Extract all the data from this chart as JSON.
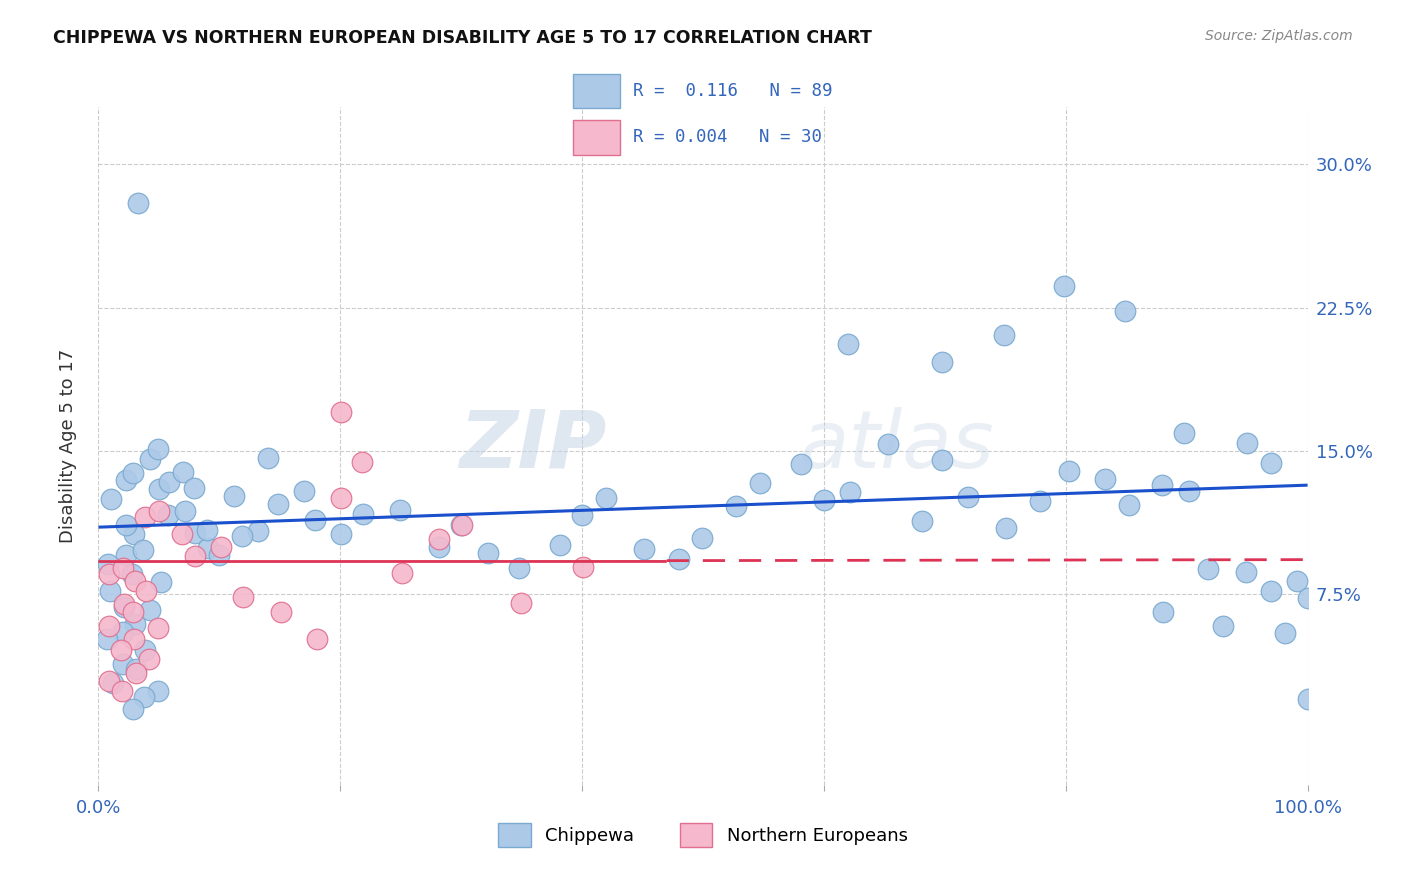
{
  "title": "CHIPPEWA VS NORTHERN EUROPEAN DISABILITY AGE 5 TO 17 CORRELATION CHART",
  "source": "Source: ZipAtlas.com",
  "ylabel": "Disability Age 5 to 17",
  "xlim": [
    0,
    100
  ],
  "ylim": [
    -2.5,
    33
  ],
  "yticks": [
    7.5,
    15.0,
    22.5,
    30.0
  ],
  "ytick_labels": [
    "7.5%",
    "15.0%",
    "22.5%",
    "30.0%"
  ],
  "xticks": [
    0,
    20,
    40,
    60,
    80,
    100
  ],
  "xtick_labels": [
    "0.0%",
    "",
    "",
    "",
    "",
    "100.0%"
  ],
  "chippewa_color": "#adc9e8",
  "chippewa_edge": "#7aaad0",
  "northern_color": "#f5b8cc",
  "northern_edge": "#e07090",
  "trend_blue": "#1a50cc",
  "trend_pink": "#dd3355",
  "watermark_zip": "ZIP",
  "watermark_atlas": "atlas",
  "background": "#ffffff",
  "chip_trend_x0": 0,
  "chip_trend_y0": 11.0,
  "chip_trend_x1": 100,
  "chip_trend_y1": 13.2,
  "north_trend_x0": 0,
  "north_trend_y0": 9.2,
  "north_trend_x1": 100,
  "north_trend_y1": 9.3,
  "chippewa_x": [
    3,
    5,
    1,
    2,
    4,
    3,
    2,
    1,
    4,
    2,
    3,
    1,
    5,
    4,
    3,
    2,
    1,
    3,
    2,
    4,
    1,
    2,
    3,
    5,
    4,
    6,
    8,
    7,
    9,
    10,
    6,
    7,
    8,
    9,
    5,
    11,
    13,
    12,
    14,
    15,
    17,
    18,
    20,
    22,
    25,
    28,
    30,
    32,
    35,
    38,
    40,
    42,
    45,
    48,
    50,
    53,
    55,
    58,
    60,
    62,
    65,
    68,
    70,
    72,
    75,
    78,
    80,
    83,
    85,
    88,
    90,
    92,
    95,
    97,
    100,
    62,
    70,
    75,
    80,
    85,
    90,
    95,
    97,
    99,
    100,
    88,
    93,
    98,
    3
  ],
  "chippewa_y": [
    8.5,
    8.0,
    7.5,
    7.0,
    6.5,
    6.0,
    5.5,
    5.0,
    4.5,
    4.0,
    3.5,
    3.0,
    2.5,
    2.0,
    1.5,
    9.5,
    9.0,
    10.5,
    11.0,
    10.0,
    12.5,
    13.5,
    14.0,
    13.0,
    14.5,
    11.5,
    10.5,
    12.0,
    10.0,
    9.5,
    13.5,
    14.0,
    13.0,
    11.0,
    15.0,
    12.5,
    11.0,
    10.5,
    14.5,
    12.0,
    13.0,
    11.5,
    10.5,
    11.5,
    12.0,
    10.0,
    11.0,
    9.5,
    9.0,
    10.0,
    11.5,
    12.5,
    10.0,
    9.5,
    10.5,
    12.0,
    13.5,
    14.5,
    12.5,
    13.0,
    15.5,
    11.5,
    14.5,
    12.5,
    11.0,
    12.5,
    14.0,
    13.5,
    12.0,
    13.0,
    13.0,
    9.0,
    8.5,
    7.5,
    2.0,
    20.5,
    19.5,
    21.0,
    23.5,
    22.5,
    16.0,
    15.5,
    14.5,
    8.0,
    7.5,
    6.5,
    6.0,
    5.5,
    28.0
  ],
  "northern_x": [
    1,
    2,
    3,
    4,
    2,
    3,
    1,
    5,
    3,
    2,
    4,
    3,
    1,
    2,
    4,
    5,
    7,
    8,
    10,
    12,
    15,
    18,
    20,
    22,
    25,
    28,
    30,
    35,
    40,
    20
  ],
  "northern_y": [
    8.5,
    9.0,
    8.0,
    7.5,
    7.0,
    6.5,
    6.0,
    5.5,
    5.0,
    4.5,
    4.0,
    3.5,
    3.0,
    2.5,
    11.5,
    12.0,
    10.5,
    9.5,
    10.0,
    7.5,
    6.5,
    5.0,
    17.0,
    14.5,
    8.5,
    10.5,
    11.0,
    7.0,
    9.0,
    12.5
  ]
}
